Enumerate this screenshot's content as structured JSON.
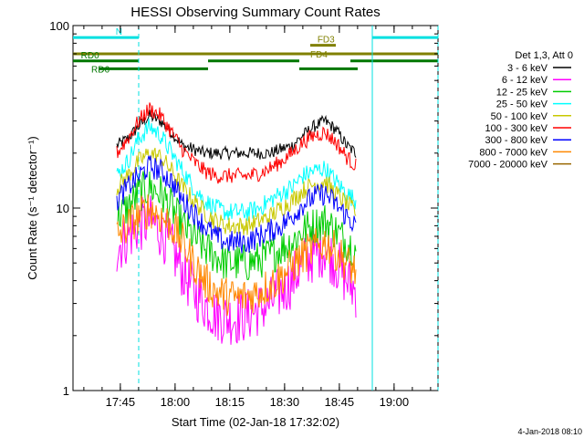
{
  "chart_data": {
    "type": "line",
    "title": "HESSI Observing Summary Count Rates",
    "xlabel": "Start Time (02-Jan-18 17:32:02)",
    "ylabel": "Count Rate (s⁻¹ detector⁻¹)",
    "yscale": "log",
    "ylim": [
      1,
      100
    ],
    "xlim_minutes_from_start": [
      0,
      100
    ],
    "x_ticks": [
      {
        "label": "17:45",
        "minute": 12.97
      },
      {
        "label": "18:00",
        "minute": 27.97
      },
      {
        "label": "18:15",
        "minute": 42.97
      },
      {
        "label": "18:30",
        "minute": 57.97
      },
      {
        "label": "18:45",
        "minute": 72.97
      },
      {
        "label": "19:00",
        "minute": 87.97
      }
    ],
    "y_ticks": [
      {
        "label": "1",
        "value": 1
      },
      {
        "label": "10",
        "value": 10
      },
      {
        "label": "100",
        "value": 100
      }
    ],
    "legend_header": "Det 1,3, Att 0",
    "legend_position": "right",
    "grid": false,
    "x_minutes": [
      12,
      15,
      18,
      21,
      24,
      27,
      30,
      33,
      36,
      39,
      42,
      45,
      48,
      51,
      54,
      57,
      60,
      63,
      66,
      69,
      72,
      75,
      77.5
    ],
    "series": [
      {
        "name": "3 - 6 keV",
        "color": "#000000",
        "values": [
          22,
          24,
          28,
          32,
          30,
          26,
          22,
          21,
          20,
          20,
          20,
          20,
          20,
          20,
          20,
          21,
          22,
          25,
          28,
          30,
          27,
          22,
          20
        ]
      },
      {
        "name": "6 - 12 keV",
        "color": "#ff00ff",
        "values": [
          6,
          7,
          8,
          8.5,
          7.5,
          6,
          4.5,
          3.5,
          3,
          2.6,
          2.5,
          2.5,
          2.6,
          2.8,
          3,
          3.5,
          4,
          5,
          5.5,
          6,
          5,
          4,
          3.5
        ]
      },
      {
        "name": "12 - 25 keV",
        "color": "#00cc00",
        "values": [
          9,
          10,
          12,
          13,
          12,
          10,
          8,
          7,
          6,
          5.5,
          5,
          5,
          5,
          5.2,
          5.5,
          6,
          6.5,
          7.5,
          8,
          8.5,
          7.5,
          6.5,
          6
        ]
      },
      {
        "name": "25 - 50 keV",
        "color": "#00ffff",
        "values": [
          15,
          18,
          24,
          28,
          25,
          20,
          16,
          13,
          11,
          10,
          9.5,
          9.5,
          9.5,
          10,
          11,
          12,
          13,
          15,
          16,
          16.5,
          14,
          12,
          11
        ]
      },
      {
        "name": "50 - 100 keV",
        "color": "#c8c800",
        "values": [
          13,
          15,
          18,
          20,
          19,
          16,
          13,
          11,
          9.5,
          8.5,
          8,
          8,
          8,
          8.5,
          9,
          10,
          11,
          12.5,
          13.5,
          14,
          12,
          10.5,
          9.5
        ]
      },
      {
        "name": "100 - 300 keV",
        "color": "#ff0000",
        "values": [
          20,
          24,
          30,
          35,
          32,
          26,
          21,
          18,
          16,
          15,
          15,
          15,
          15,
          15.5,
          16.5,
          18,
          20,
          23,
          25,
          26,
          23,
          19,
          17
        ]
      },
      {
        "name": "300 - 800 keV",
        "color": "#0000ff",
        "values": [
          11,
          13,
          15,
          17,
          16,
          14,
          11,
          9.5,
          8,
          7,
          6.5,
          6.5,
          6.5,
          7,
          7.5,
          8,
          9,
          10.5,
          11.5,
          12,
          10.5,
          9,
          8
        ]
      },
      {
        "name": "800 - 7000 keV",
        "color": "#ff8800",
        "values": [
          7,
          8,
          9,
          10,
          9,
          8,
          6.5,
          5,
          4,
          3.5,
          3.3,
          3.2,
          3.3,
          3.5,
          3.8,
          4.2,
          4.8,
          5.5,
          6,
          6.5,
          5.8,
          5,
          4.5
        ]
      },
      {
        "name": "7000 - 20000 keV",
        "color": "#996600",
        "values": []
      }
    ],
    "flags": [
      {
        "name": "N",
        "color": "#00e0e0",
        "segments": [
          [
            0,
            18
          ],
          [
            82,
            100
          ]
        ],
        "level": 86
      },
      {
        "name": "FD3",
        "color": "#808000",
        "segments": [
          [
            65,
            72
          ]
        ],
        "level": 78
      },
      {
        "name": "FD4",
        "color": "#808000",
        "segments": [
          [
            0,
            100
          ]
        ],
        "level": 70
      },
      {
        "name": "RD0",
        "color": "#007700",
        "segments": [
          [
            0,
            18
          ],
          [
            37,
            62
          ],
          [
            76,
            100
          ]
        ],
        "level": 64
      },
      {
        "name": "RD6",
        "color": "#007700",
        "segments": [
          [
            7,
            37
          ],
          [
            62,
            78
          ]
        ],
        "level": 58
      }
    ],
    "vertical_markers": [
      {
        "minute": 18,
        "color": "#00e0e0",
        "style": "dashed"
      },
      {
        "minute": 82,
        "color": "#00e0e0",
        "style": "solid"
      },
      {
        "minute": 100,
        "color": "#00e0e0",
        "style": "dashed"
      }
    ],
    "timestamp": "4-Jan-2018 08:10"
  }
}
